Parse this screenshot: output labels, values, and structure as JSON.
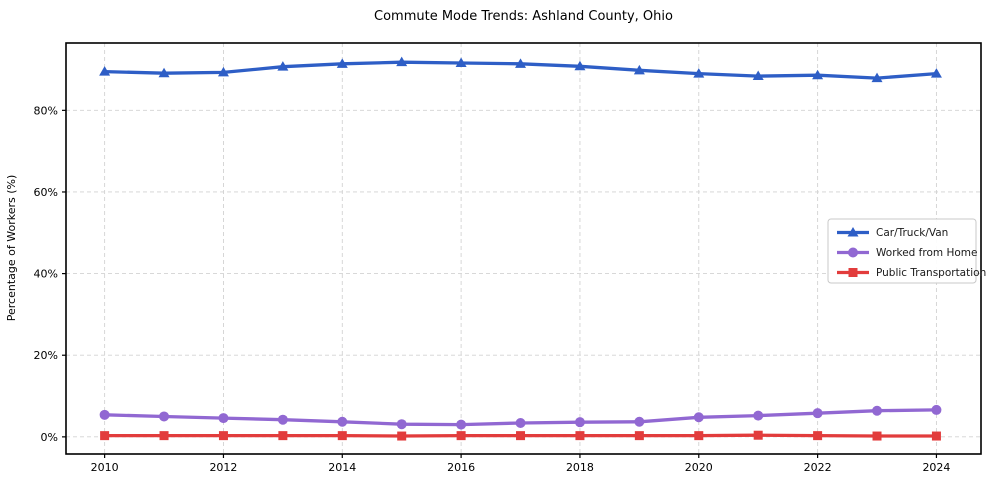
{
  "figure": {
    "title": "Commute Mode Trends: Ashland County, Ohio"
  },
  "chart_data": {
    "type": "line",
    "title": "Commute Mode Trends: Ashland County, Ohio",
    "xlabel": "",
    "ylabel": "Percentage of Workers (%)",
    "x": [
      2010,
      2011,
      2012,
      2013,
      2014,
      2015,
      2016,
      2017,
      2018,
      2019,
      2020,
      2021,
      2022,
      2023,
      2024
    ],
    "x_ticks": [
      2010,
      2012,
      2014,
      2016,
      2018,
      2020,
      2022,
      2024
    ],
    "y_ticks": [
      0,
      20,
      40,
      60,
      80
    ],
    "y_tick_suffix": "%",
    "xlim": [
      2009.35,
      2024.75
    ],
    "ylim": [
      -4.2,
      96.5
    ],
    "grid": true,
    "grid_style": "dashed",
    "legend_position": "center-right",
    "series": [
      {
        "name": "Car/Truck/Van",
        "color": "#2e5ec6",
        "marker": "triangle",
        "values": [
          89.5,
          89.1,
          89.3,
          90.7,
          91.4,
          91.8,
          91.6,
          91.4,
          90.8,
          89.8,
          89.0,
          88.4,
          88.6,
          87.9,
          89.0
        ]
      },
      {
        "name": "Worked from Home",
        "color": "#9168d2",
        "marker": "circle",
        "values": [
          5.4,
          5.0,
          4.6,
          4.2,
          3.7,
          3.1,
          3.0,
          3.4,
          3.6,
          3.7,
          4.8,
          5.2,
          5.8,
          6.4,
          6.6
        ]
      },
      {
        "name": "Public Transportation",
        "color": "#e23c3c",
        "marker": "square",
        "values": [
          0.3,
          0.3,
          0.3,
          0.3,
          0.3,
          0.2,
          0.3,
          0.3,
          0.3,
          0.3,
          0.3,
          0.4,
          0.3,
          0.2,
          0.2
        ]
      }
    ]
  },
  "colors": {
    "background": "#ffffff",
    "axis": "#000000",
    "grid": "#d2d2d2",
    "tick_text": "#000000",
    "legend_border": "#c9c9c9"
  }
}
